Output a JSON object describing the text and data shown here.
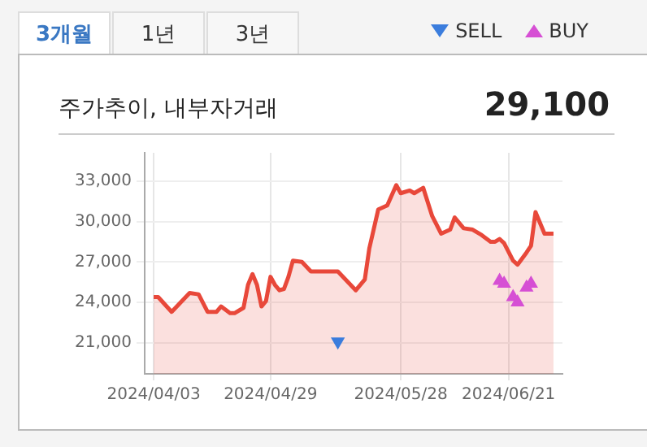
{
  "chart_data": {
    "type": "area",
    "title": "주가추이, 내부자거래",
    "subtitle": "29,100",
    "annotations": [
      "3개월",
      "1년",
      "3년"
    ],
    "legend": "top right",
    "grid": true,
    "xlim": [
      "2024-04-01",
      "2024-07-03"
    ],
    "xticks": [
      {
        "value": "2024-04-03",
        "label": "2024/04/03"
      },
      {
        "value": "2024-04-29",
        "label": "2024/04/29"
      },
      {
        "value": "2024-05-28",
        "label": "2024/05/28"
      },
      {
        "value": "2024-06-21",
        "label": "2024/06/21"
      }
    ],
    "ylim": [
      18700,
      35100
    ],
    "yticks": [
      {
        "value": 21000,
        "label": "21,000"
      },
      {
        "value": 24000,
        "label": "24,000"
      },
      {
        "value": 27000,
        "label": "27,000"
      },
      {
        "value": 30000,
        "label": "30,000"
      },
      {
        "value": 33000,
        "label": "33,000"
      }
    ],
    "series": [
      {
        "color": "#e8483a",
        "marker": "none",
        "x": [
          "2024-04-03",
          "2024-04-04",
          "2024-04-07",
          "2024-04-11",
          "2024-04-13",
          "2024-04-15",
          "2024-04-17",
          "2024-04-18",
          "2024-04-20",
          "2024-04-21",
          "2024-04-23",
          "2024-04-24",
          "2024-04-25",
          "2024-04-26",
          "2024-04-27",
          "2024-04-28",
          "2024-04-29",
          "2024-04-30",
          "2024-05-01",
          "2024-05-02",
          "2024-05-03",
          "2024-05-04",
          "2024-05-06",
          "2024-05-08",
          "2024-05-14",
          "2024-05-18",
          "2024-05-20",
          "2024-05-21",
          "2024-05-23",
          "2024-05-25",
          "2024-05-27",
          "2024-05-28",
          "2024-05-30",
          "2024-05-31",
          "2024-06-02",
          "2024-06-04",
          "2024-06-06",
          "2024-06-08",
          "2024-06-09",
          "2024-06-11",
          "2024-06-13",
          "2024-06-15",
          "2024-06-17",
          "2024-06-18",
          "2024-06-19",
          "2024-06-20",
          "2024-06-22",
          "2024-06-23",
          "2024-06-25",
          "2024-06-26",
          "2024-06-27",
          "2024-06-29",
          "2024-07-01"
        ],
        "values": [
          24400,
          24400,
          23300,
          24700,
          24600,
          23300,
          23300,
          23700,
          23200,
          23200,
          23600,
          25300,
          26100,
          25300,
          23700,
          24100,
          25900,
          25300,
          24900,
          25000,
          25900,
          27100,
          27000,
          26300,
          26300,
          24900,
          25700,
          28000,
          30900,
          31200,
          32700,
          32100,
          32300,
          32100,
          32500,
          30400,
          29100,
          29400,
          30300,
          29500,
          29400,
          29000,
          28500,
          28500,
          28700,
          28400,
          27100,
          26800,
          27700,
          28200,
          30700,
          29100,
          29100
        ]
      },
      {
        "type": "scatter",
        "name": "SELL",
        "color": "#3b7ddd",
        "marker": "triangle",
        "x": [
          "2024-05-14"
        ],
        "values": [
          21100
        ]
      },
      {
        "type": "scatter",
        "name": "BUY",
        "color": "#d64fd4",
        "marker": "triangle",
        "x": [
          "2024-06-19",
          "2024-06-20",
          "2024-06-22",
          "2024-06-23",
          "2024-06-25",
          "2024-06-26"
        ],
        "values": [
          25600,
          25400,
          24400,
          24000,
          25100,
          25400
        ]
      }
    ]
  }
}
